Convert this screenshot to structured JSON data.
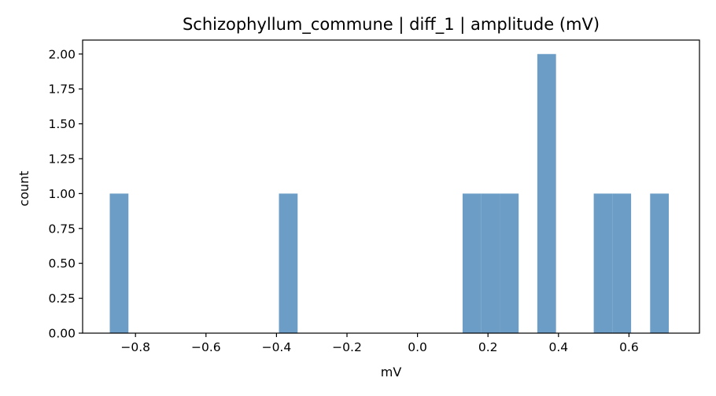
{
  "chart_data": {
    "type": "bar",
    "title": "Schizophyllum_commune | diff_1 | amplitude (mV)",
    "xlabel": "mV",
    "ylabel": "count",
    "xlim": [
      -0.95,
      0.8
    ],
    "ylim": [
      0,
      2.1
    ],
    "grid": false,
    "bar_color": "#6b9dc6",
    "bins": [
      {
        "start": -0.873,
        "end": -0.82,
        "count": 1
      },
      {
        "start": -0.393,
        "end": -0.34,
        "count": 1
      },
      {
        "start": 0.128,
        "end": 0.181,
        "count": 1
      },
      {
        "start": 0.181,
        "end": 0.234,
        "count": 1
      },
      {
        "start": 0.234,
        "end": 0.287,
        "count": 1
      },
      {
        "start": 0.34,
        "end": 0.393,
        "count": 2
      },
      {
        "start": 0.5,
        "end": 0.553,
        "count": 1
      },
      {
        "start": 0.553,
        "end": 0.606,
        "count": 1
      },
      {
        "start": 0.66,
        "end": 0.713,
        "count": 1
      }
    ],
    "xticks": [
      {
        "value": -0.8,
        "label": "−0.8"
      },
      {
        "value": -0.6,
        "label": "−0.6"
      },
      {
        "value": -0.4,
        "label": "−0.4"
      },
      {
        "value": -0.2,
        "label": "−0.2"
      },
      {
        "value": 0.0,
        "label": "0.0"
      },
      {
        "value": 0.2,
        "label": "0.2"
      },
      {
        "value": 0.4,
        "label": "0.4"
      },
      {
        "value": 0.6,
        "label": "0.6"
      }
    ],
    "yticks": [
      {
        "value": 0.0,
        "label": "0.00"
      },
      {
        "value": 0.25,
        "label": "0.25"
      },
      {
        "value": 0.5,
        "label": "0.50"
      },
      {
        "value": 0.75,
        "label": "0.75"
      },
      {
        "value": 1.0,
        "label": "1.00"
      },
      {
        "value": 1.25,
        "label": "1.25"
      },
      {
        "value": 1.5,
        "label": "1.50"
      },
      {
        "value": 1.75,
        "label": "1.75"
      },
      {
        "value": 2.0,
        "label": "2.00"
      }
    ]
  }
}
